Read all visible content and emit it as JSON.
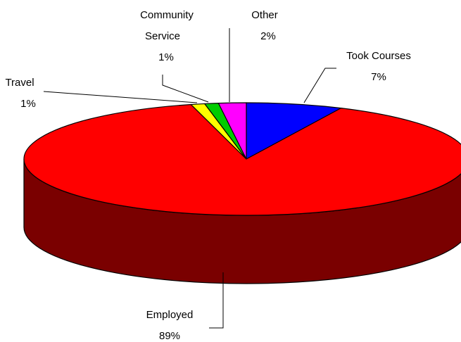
{
  "chart_data": {
    "type": "pie",
    "title": "",
    "style": "3d-tilted",
    "slices": [
      {
        "label": "Took Courses",
        "value": 7,
        "value_label": "7%",
        "color": "#0000FF"
      },
      {
        "label": "Employed",
        "value": 89,
        "value_label": "89%",
        "color": "#FF0000",
        "side_color": "#7A0000"
      },
      {
        "label": "Travel",
        "value": 1,
        "value_label": "1%",
        "color": "#FFFF00"
      },
      {
        "label": "Community Service",
        "value": 1,
        "value_label": "1%",
        "color": "#00CC00"
      },
      {
        "label": "Other",
        "value": 2,
        "value_label": "2%",
        "color": "#FF00FF"
      }
    ],
    "legend": "none"
  }
}
